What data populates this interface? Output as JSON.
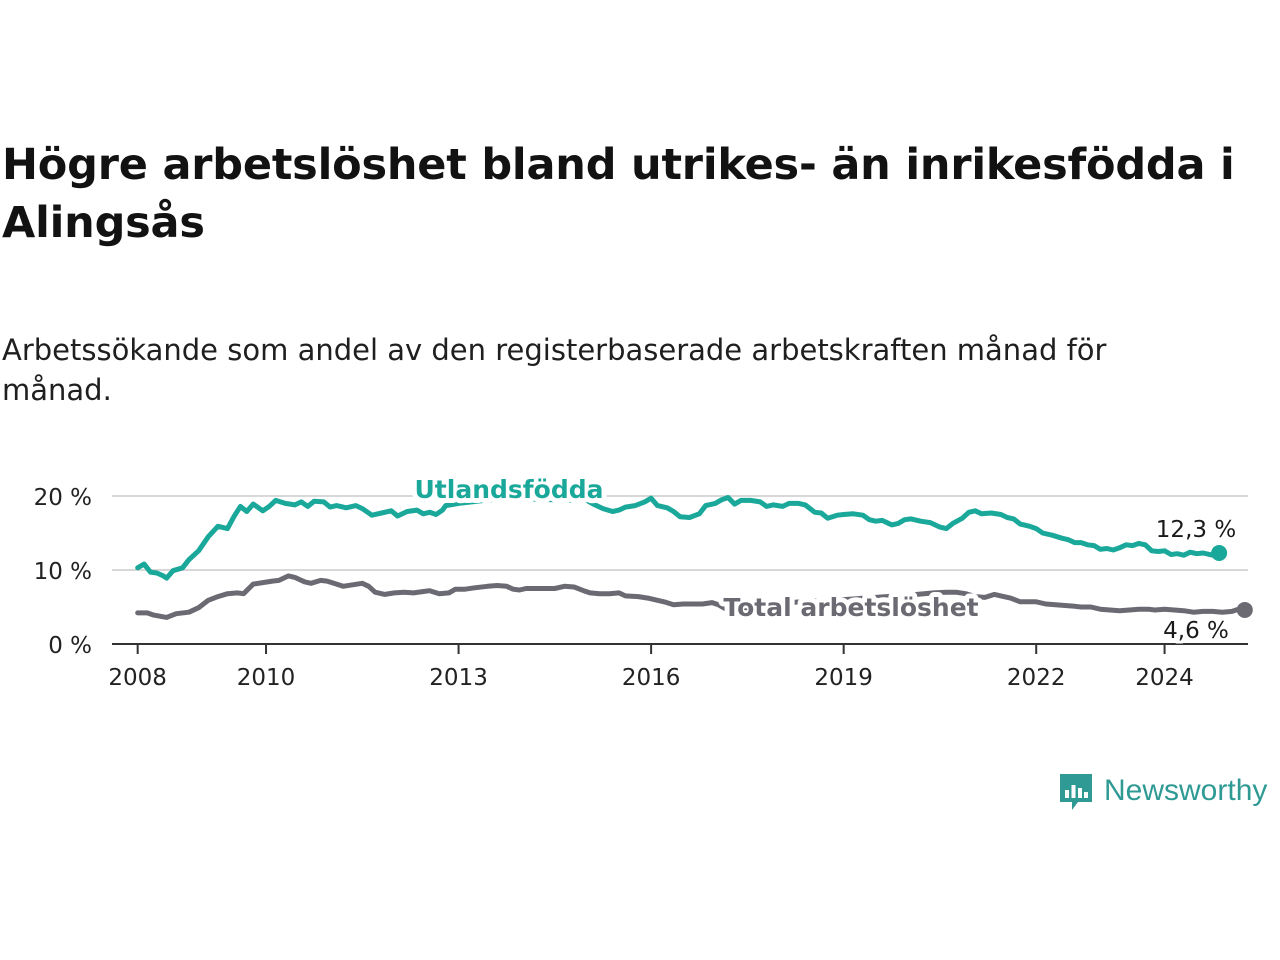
{
  "title": "Högre arbetslöshet bland utrikes- än inrikesfödda i Alingsås",
  "subtitle": "Arbetssökande som andel av den registerbaserade arbetskraften månad för månad.",
  "brand": {
    "name": "Newsworthy",
    "icon": "newsworthy-logo-icon"
  },
  "colors": {
    "foreign": "#1aa89a",
    "total": "#6b6a73",
    "axis": "#333333",
    "grid": "#d8d8d8"
  },
  "chart_data": {
    "type": "line",
    "title": "Högre arbetslöshet bland utrikes- än inrikesfödda i Alingsås",
    "xlabel": "",
    "ylabel": "",
    "xlim": [
      2007.6,
      2025.3
    ],
    "ylim": [
      0,
      20
    ],
    "y_ticks": [
      0,
      10,
      20
    ],
    "y_tick_labels": [
      "0 %",
      "10 %",
      "20 %"
    ],
    "x_ticks": [
      2008,
      2010,
      2013,
      2016,
      2019,
      2022,
      2024
    ],
    "x_tick_labels": [
      "2008",
      "2010",
      "2013",
      "2016",
      "2019",
      "2022",
      "2024"
    ],
    "grid": true,
    "series": [
      {
        "name": "Utlandsfödda",
        "color": "#1aa89a",
        "end_label": "12,3 %",
        "points": [
          [
            2008.0,
            10.3
          ],
          [
            2008.1,
            10.8
          ],
          [
            2008.2,
            9.7
          ],
          [
            2008.3,
            9.6
          ],
          [
            2008.4,
            9.2
          ],
          [
            2008.45,
            8.9
          ],
          [
            2008.55,
            9.9
          ],
          [
            2008.7,
            10.3
          ],
          [
            2008.8,
            11.4
          ],
          [
            2008.95,
            12.6
          ],
          [
            2009.1,
            14.5
          ],
          [
            2009.25,
            15.9
          ],
          [
            2009.4,
            15.6
          ],
          [
            2009.5,
            17.2
          ],
          [
            2009.6,
            18.6
          ],
          [
            2009.7,
            17.9
          ],
          [
            2009.8,
            18.9
          ],
          [
            2009.95,
            18.0
          ],
          [
            2010.05,
            18.6
          ],
          [
            2010.15,
            19.4
          ],
          [
            2010.3,
            19.0
          ],
          [
            2010.45,
            18.8
          ],
          [
            2010.55,
            19.2
          ],
          [
            2010.65,
            18.6
          ],
          [
            2010.75,
            19.3
          ],
          [
            2010.9,
            19.2
          ],
          [
            2011.0,
            18.5
          ],
          [
            2011.1,
            18.7
          ],
          [
            2011.25,
            18.4
          ],
          [
            2011.4,
            18.7
          ],
          [
            2011.5,
            18.3
          ],
          [
            2011.65,
            17.4
          ],
          [
            2011.8,
            17.7
          ],
          [
            2011.95,
            18.0
          ],
          [
            2012.05,
            17.3
          ],
          [
            2012.2,
            17.9
          ],
          [
            2012.35,
            18.1
          ],
          [
            2012.45,
            17.6
          ],
          [
            2012.55,
            17.8
          ],
          [
            2012.65,
            17.5
          ],
          [
            2012.75,
            18.1
          ],
          [
            2012.8,
            18.7
          ],
          [
            2013.0,
            19.0
          ],
          [
            2013.5,
            19.5
          ],
          [
            2014.0,
            19.6
          ],
          [
            2014.5,
            19.5
          ],
          [
            2015.0,
            19.4
          ],
          [
            2015.1,
            18.9
          ],
          [
            2015.25,
            18.3
          ],
          [
            2015.4,
            17.9
          ],
          [
            2015.5,
            18.1
          ],
          [
            2015.6,
            18.5
          ],
          [
            2015.75,
            18.7
          ],
          [
            2015.9,
            19.2
          ],
          [
            2016.0,
            19.7
          ],
          [
            2016.1,
            18.7
          ],
          [
            2016.25,
            18.4
          ],
          [
            2016.35,
            17.9
          ],
          [
            2016.45,
            17.2
          ],
          [
            2016.6,
            17.1
          ],
          [
            2016.75,
            17.6
          ],
          [
            2016.85,
            18.7
          ],
          [
            2017.0,
            19.0
          ],
          [
            2017.1,
            19.5
          ],
          [
            2017.2,
            19.8
          ],
          [
            2017.3,
            18.9
          ],
          [
            2017.4,
            19.4
          ],
          [
            2017.55,
            19.4
          ],
          [
            2017.7,
            19.2
          ],
          [
            2017.8,
            18.6
          ],
          [
            2017.9,
            18.8
          ],
          [
            2018.05,
            18.6
          ],
          [
            2018.15,
            19.0
          ],
          [
            2018.3,
            19.0
          ],
          [
            2018.4,
            18.8
          ],
          [
            2018.55,
            17.8
          ],
          [
            2018.65,
            17.7
          ],
          [
            2018.75,
            17.0
          ],
          [
            2018.9,
            17.4
          ],
          [
            2019.0,
            17.5
          ],
          [
            2019.15,
            17.6
          ],
          [
            2019.3,
            17.4
          ],
          [
            2019.4,
            16.8
          ],
          [
            2019.5,
            16.6
          ],
          [
            2019.6,
            16.7
          ],
          [
            2019.75,
            16.1
          ],
          [
            2019.85,
            16.3
          ],
          [
            2019.95,
            16.8
          ],
          [
            2020.05,
            16.9
          ],
          [
            2020.2,
            16.6
          ],
          [
            2020.35,
            16.4
          ],
          [
            2020.5,
            15.8
          ],
          [
            2020.6,
            15.6
          ],
          [
            2020.7,
            16.3
          ],
          [
            2020.85,
            17.0
          ],
          [
            2020.95,
            17.8
          ],
          [
            2021.05,
            18.0
          ],
          [
            2021.15,
            17.6
          ],
          [
            2021.3,
            17.7
          ],
          [
            2021.45,
            17.5
          ],
          [
            2021.55,
            17.1
          ],
          [
            2021.65,
            16.9
          ],
          [
            2021.75,
            16.2
          ],
          [
            2021.9,
            15.9
          ],
          [
            2022.0,
            15.6
          ],
          [
            2022.1,
            15.0
          ],
          [
            2022.25,
            14.7
          ],
          [
            2022.4,
            14.3
          ],
          [
            2022.5,
            14.1
          ],
          [
            2022.6,
            13.7
          ],
          [
            2022.7,
            13.7
          ],
          [
            2022.8,
            13.4
          ],
          [
            2022.9,
            13.3
          ],
          [
            2023.0,
            12.8
          ],
          [
            2023.1,
            12.9
          ],
          [
            2023.2,
            12.7
          ],
          [
            2023.3,
            13.0
          ],
          [
            2023.4,
            13.4
          ],
          [
            2023.5,
            13.3
          ],
          [
            2023.6,
            13.6
          ],
          [
            2023.7,
            13.4
          ],
          [
            2023.8,
            12.6
          ],
          [
            2023.9,
            12.5
          ],
          [
            2024.0,
            12.6
          ],
          [
            2024.1,
            12.1
          ],
          [
            2024.2,
            12.2
          ],
          [
            2024.3,
            12.0
          ],
          [
            2024.4,
            12.4
          ],
          [
            2024.5,
            12.2
          ],
          [
            2024.6,
            12.3
          ],
          [
            2024.75,
            12.0
          ],
          [
            2024.85,
            12.3
          ]
        ]
      },
      {
        "name": "Total arbetslöshet",
        "color": "#6b6a73",
        "end_label": "4,6 %",
        "points": [
          [
            2008.0,
            4.2
          ],
          [
            2008.15,
            4.2
          ],
          [
            2008.25,
            3.9
          ],
          [
            2008.45,
            3.6
          ],
          [
            2008.6,
            4.1
          ],
          [
            2008.8,
            4.3
          ],
          [
            2008.95,
            4.9
          ],
          [
            2009.1,
            5.9
          ],
          [
            2009.25,
            6.4
          ],
          [
            2009.4,
            6.8
          ],
          [
            2009.55,
            6.9
          ],
          [
            2009.65,
            6.8
          ],
          [
            2009.8,
            8.1
          ],
          [
            2009.95,
            8.3
          ],
          [
            2010.1,
            8.5
          ],
          [
            2010.2,
            8.6
          ],
          [
            2010.35,
            9.2
          ],
          [
            2010.45,
            9.0
          ],
          [
            2010.6,
            8.4
          ],
          [
            2010.7,
            8.2
          ],
          [
            2010.85,
            8.6
          ],
          [
            2010.95,
            8.5
          ],
          [
            2011.1,
            8.1
          ],
          [
            2011.2,
            7.8
          ],
          [
            2011.35,
            8.0
          ],
          [
            2011.5,
            8.2
          ],
          [
            2011.6,
            7.8
          ],
          [
            2011.7,
            7.0
          ],
          [
            2011.85,
            6.7
          ],
          [
            2012.0,
            6.9
          ],
          [
            2012.15,
            7.0
          ],
          [
            2012.3,
            6.9
          ],
          [
            2012.45,
            7.1
          ],
          [
            2012.55,
            7.2
          ],
          [
            2012.7,
            6.8
          ],
          [
            2012.85,
            6.9
          ],
          [
            2012.95,
            7.4
          ],
          [
            2013.1,
            7.4
          ],
          [
            2013.25,
            7.6
          ],
          [
            2013.45,
            7.8
          ],
          [
            2013.6,
            7.9
          ],
          [
            2013.75,
            7.8
          ],
          [
            2013.85,
            7.4
          ],
          [
            2013.95,
            7.3
          ],
          [
            2014.05,
            7.5
          ],
          [
            2014.2,
            7.5
          ],
          [
            2014.35,
            7.5
          ],
          [
            2014.5,
            7.5
          ],
          [
            2014.65,
            7.8
          ],
          [
            2014.8,
            7.7
          ],
          [
            2014.95,
            7.2
          ],
          [
            2015.05,
            6.9
          ],
          [
            2015.2,
            6.8
          ],
          [
            2015.35,
            6.8
          ],
          [
            2015.5,
            6.9
          ],
          [
            2015.6,
            6.5
          ],
          [
            2015.8,
            6.4
          ],
          [
            2015.95,
            6.2
          ],
          [
            2016.1,
            5.9
          ],
          [
            2016.2,
            5.7
          ],
          [
            2016.35,
            5.3
          ],
          [
            2016.5,
            5.4
          ],
          [
            2016.65,
            5.4
          ],
          [
            2016.8,
            5.4
          ],
          [
            2016.95,
            5.6
          ],
          [
            2017.05,
            5.3
          ],
          [
            2017.15,
            4.8
          ],
          [
            2017.35,
            4.8
          ],
          [
            2017.5,
            4.8
          ],
          [
            2017.6,
            4.9
          ],
          [
            2017.8,
            5.2
          ],
          [
            2018.0,
            5.5
          ],
          [
            2018.5,
            5.8
          ],
          [
            2019.0,
            6.0
          ],
          [
            2019.5,
            6.3
          ],
          [
            2020.0,
            6.6
          ],
          [
            2020.4,
            6.9
          ],
          [
            2020.6,
            7.0
          ],
          [
            2020.75,
            7.0
          ],
          [
            2020.9,
            6.8
          ],
          [
            2021.05,
            6.4
          ],
          [
            2021.2,
            6.3
          ],
          [
            2021.35,
            6.7
          ],
          [
            2021.45,
            6.5
          ],
          [
            2021.6,
            6.2
          ],
          [
            2021.75,
            5.7
          ],
          [
            2021.9,
            5.7
          ],
          [
            2022.0,
            5.7
          ],
          [
            2022.15,
            5.4
          ],
          [
            2022.3,
            5.3
          ],
          [
            2022.45,
            5.2
          ],
          [
            2022.6,
            5.1
          ],
          [
            2022.7,
            5.0
          ],
          [
            2022.85,
            5.0
          ],
          [
            2023.0,
            4.7
          ],
          [
            2023.15,
            4.6
          ],
          [
            2023.3,
            4.5
          ],
          [
            2023.45,
            4.6
          ],
          [
            2023.6,
            4.7
          ],
          [
            2023.75,
            4.7
          ],
          [
            2023.85,
            4.6
          ],
          [
            2024.0,
            4.7
          ],
          [
            2024.15,
            4.6
          ],
          [
            2024.3,
            4.5
          ],
          [
            2024.45,
            4.3
          ],
          [
            2024.6,
            4.4
          ],
          [
            2024.75,
            4.4
          ],
          [
            2024.9,
            4.3
          ],
          [
            2025.05,
            4.4
          ],
          [
            2025.15,
            4.7
          ],
          [
            2025.25,
            4.6
          ]
        ]
      }
    ]
  }
}
